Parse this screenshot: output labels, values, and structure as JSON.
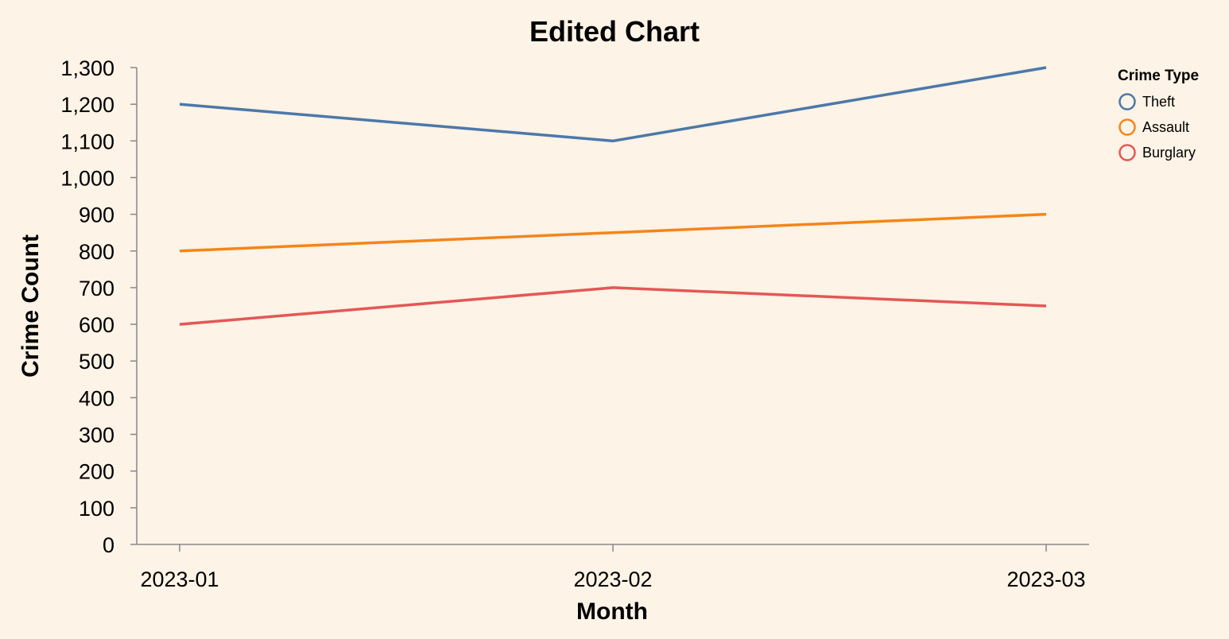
{
  "chart_data": {
    "type": "line",
    "title": "Edited Chart",
    "xlabel": "Month",
    "ylabel": "Crime Count",
    "categories": [
      "2023-01",
      "2023-02",
      "2023-03"
    ],
    "ylim": [
      0,
      1300
    ],
    "yticks": [
      0,
      100,
      200,
      300,
      400,
      500,
      600,
      700,
      800,
      900,
      1000,
      1100,
      1200,
      1300
    ],
    "ytick_labels": [
      "0",
      "100",
      "200",
      "300",
      "400",
      "500",
      "600",
      "700",
      "800",
      "900",
      "1,000",
      "1,100",
      "1,200",
      "1,300"
    ],
    "grid": false,
    "legend": {
      "title": "Crime Type",
      "placement": "right"
    },
    "series": [
      {
        "name": "Theft",
        "values": [
          1200,
          1100,
          1300
        ],
        "color": "#4c78a8"
      },
      {
        "name": "Assault",
        "values": [
          800,
          850,
          900
        ],
        "color": "#f58518"
      },
      {
        "name": "Burglary",
        "values": [
          600,
          700,
          650
        ],
        "color": "#e45756"
      }
    ]
  }
}
